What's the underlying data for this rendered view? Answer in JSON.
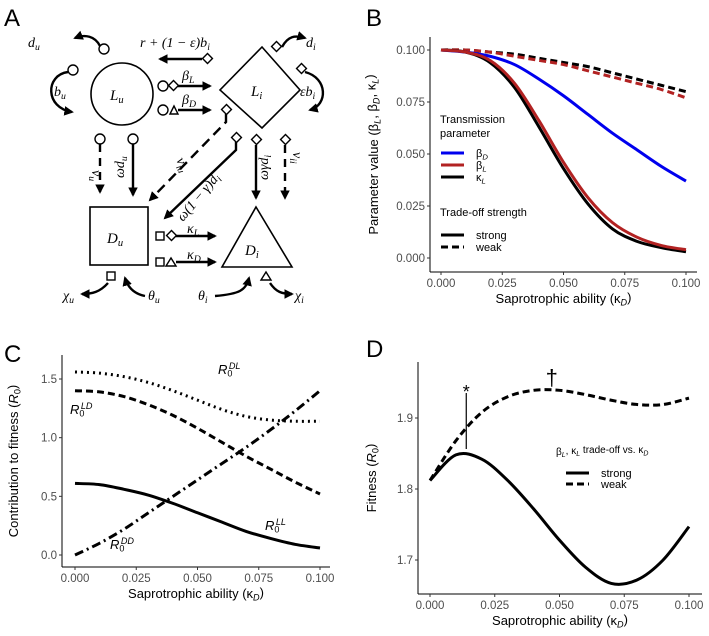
{
  "panel_letters": {
    "a": "A",
    "b": "B",
    "c": "C",
    "d": "D"
  },
  "diagram": {
    "nodes": {
      "Lu": [
        {
          "t": "L"
        },
        {
          "t": "u",
          "sub": true
        }
      ],
      "Li": [
        {
          "t": "L"
        },
        {
          "t": "i",
          "sub": true
        }
      ],
      "Du": [
        {
          "t": "D"
        },
        {
          "t": "u",
          "sub": true
        }
      ],
      "Di": [
        {
          "t": "D"
        },
        {
          "t": "i",
          "sub": true
        }
      ]
    },
    "labels": {
      "du": [
        {
          "t": "d"
        },
        {
          "t": "u",
          "sub": true
        }
      ],
      "recovery": [
        {
          "t": "r + (1 − ε)b"
        },
        {
          "t": "i",
          "sub": true
        }
      ],
      "di": [
        {
          "t": "d"
        },
        {
          "t": "i",
          "sub": true
        }
      ],
      "bu": [
        {
          "t": "b"
        },
        {
          "t": "u",
          "sub": true
        }
      ],
      "ebi": [
        {
          "t": "εb"
        },
        {
          "t": "i",
          "sub": true
        }
      ],
      "betaL": [
        {
          "t": "β"
        },
        {
          "t": "L",
          "sub": true
        }
      ],
      "betaD": [
        {
          "t": "β"
        },
        {
          "t": "D",
          "sub": true
        }
      ],
      "nu_u": [
        {
          "t": "ν"
        },
        {
          "t": "u",
          "sub": true
        }
      ],
      "omega_du": [
        {
          "t": "ωd"
        },
        {
          "t": "u",
          "sub": true
        }
      ],
      "nu_iu": [
        {
          "t": "ν"
        },
        {
          "t": "iu",
          "sub": true
        }
      ],
      "omega_1mg_di": [
        {
          "t": "ω(1 − γ)d"
        },
        {
          "t": "i",
          "sub": true
        }
      ],
      "omega_g_di": [
        {
          "t": "ωγd"
        },
        {
          "t": "i",
          "sub": true
        }
      ],
      "nu_ii": [
        {
          "t": "ν"
        },
        {
          "t": "ii",
          "sub": true
        }
      ],
      "kappaL": [
        {
          "t": "κ"
        },
        {
          "t": "L",
          "sub": true
        }
      ],
      "kappaD": [
        {
          "t": "κ"
        },
        {
          "t": "D",
          "sub": true
        }
      ],
      "chi_u": [
        {
          "t": "χ"
        },
        {
          "t": "u",
          "sub": true
        }
      ],
      "theta_u": [
        {
          "t": "θ"
        },
        {
          "t": "u",
          "sub": true
        }
      ],
      "theta_i": [
        {
          "t": "θ"
        },
        {
          "t": "i",
          "sub": true
        }
      ],
      "chi_i": [
        {
          "t": "χ"
        },
        {
          "t": "i",
          "sub": true
        }
      ]
    }
  },
  "chart_data": [
    {
      "id": "B",
      "type": "line",
      "xlabel": [
        {
          "t": "Saprotrophic ability (κ"
        },
        {
          "t": "D",
          "sub": true,
          "it": true
        },
        {
          "t": ")"
        }
      ],
      "ylabel": [
        {
          "t": "Parameter value (β"
        },
        {
          "t": "L",
          "sub": true,
          "it": true
        },
        {
          "t": ", β"
        },
        {
          "t": "D",
          "sub": true,
          "it": true
        },
        {
          "t": ", κ"
        },
        {
          "t": "L",
          "sub": true,
          "it": true
        },
        {
          "t": ")"
        }
      ],
      "xlim": [
        0,
        0.1
      ],
      "ylim": [
        0,
        0.1
      ],
      "xticks": [
        "0.000",
        "0.025",
        "0.050",
        "0.075",
        "0.100"
      ],
      "yticks": [
        "0.000",
        "0.025",
        "0.050",
        "0.075",
        "0.100"
      ],
      "x": [
        0,
        0.01,
        0.02,
        0.03,
        0.04,
        0.05,
        0.06,
        0.07,
        0.08,
        0.09,
        0.1
      ],
      "series": [
        {
          "name": "κL weak",
          "param": "κL",
          "strength": "weak",
          "color": "#000000",
          "values": [
            0.1,
            0.1,
            0.099,
            0.098,
            0.096,
            0.094,
            0.092,
            0.089,
            0.086,
            0.083,
            0.08
          ]
        },
        {
          "name": "βL weak",
          "param": "βL",
          "strength": "weak",
          "color": "#b22222",
          "values": [
            0.1,
            0.1,
            0.099,
            0.097,
            0.095,
            0.093,
            0.09,
            0.087,
            0.084,
            0.081,
            0.077
          ]
        },
        {
          "name": "βD strong",
          "param": "βD",
          "strength": "strong",
          "color": "#0000ee",
          "values": [
            0.1,
            0.099,
            0.097,
            0.093,
            0.086,
            0.078,
            0.069,
            0.06,
            0.052,
            0.044,
            0.037
          ]
        },
        {
          "name": "κL strong",
          "param": "κL",
          "strength": "strong",
          "color": "#000000",
          "values": [
            0.1,
            0.099,
            0.094,
            0.082,
            0.063,
            0.043,
            0.026,
            0.014,
            0.008,
            0.005,
            0.003
          ]
        },
        {
          "name": "βL strong",
          "param": "βL",
          "strength": "strong",
          "color": "#b22222",
          "values": [
            0.1,
            0.099,
            0.095,
            0.084,
            0.066,
            0.046,
            0.029,
            0.017,
            0.01,
            0.006,
            0.004
          ]
        }
      ],
      "legend": {
        "placement": "left-middle",
        "title1": [
          "Transmission",
          "parameter"
        ],
        "items": [
          {
            "label": [
              {
                "t": "β"
              },
              {
                "t": "D",
                "sub": true,
                "it": true
              }
            ],
            "color": "#0000ee"
          },
          {
            "label": [
              {
                "t": "β"
              },
              {
                "t": "L",
                "sub": true,
                "it": true
              }
            ],
            "color": "#b22222"
          },
          {
            "label": [
              {
                "t": "κ"
              },
              {
                "t": "L",
                "sub": true,
                "it": true
              }
            ],
            "color": "#000000"
          }
        ],
        "title2": "Trade-off strength",
        "styles": [
          {
            "label": "strong",
            "dash": "solid"
          },
          {
            "label": "weak",
            "dash": "dashed"
          }
        ]
      }
    },
    {
      "id": "C",
      "type": "line",
      "xlabel": [
        {
          "t": "Saprotrophic ability (κ"
        },
        {
          "t": "D",
          "sub": true,
          "it": true
        },
        {
          "t": ")"
        }
      ],
      "ylabel": [
        {
          "t": "Contribution to fitness ("
        },
        {
          "t": "R",
          "it": true
        },
        {
          "t": "0",
          "sub": true
        },
        {
          "t": ")"
        }
      ],
      "xlim": [
        0,
        0.1
      ],
      "ylim": [
        0,
        1.5
      ],
      "xticks": [
        "0.000",
        "0.025",
        "0.050",
        "0.075",
        "0.100"
      ],
      "yticks": [
        "0.0",
        "0.5",
        "1.0",
        "1.5"
      ],
      "x": [
        0,
        0.01,
        0.02,
        0.03,
        0.04,
        0.05,
        0.06,
        0.07,
        0.08,
        0.09,
        0.1
      ],
      "series": [
        {
          "name": "R0DL",
          "dash": "dotted",
          "label": [
            {
              "t": "R",
              "it": true
            },
            {
              "t": "0",
              "sub": true
            },
            {
              "t": "DL",
              "sup": true,
              "it": true
            }
          ],
          "values": [
            1.56,
            1.55,
            1.52,
            1.47,
            1.4,
            1.32,
            1.24,
            1.18,
            1.15,
            1.14,
            1.14
          ]
        },
        {
          "name": "R0LD",
          "dash": "dashed",
          "label": [
            {
              "t": "R",
              "it": true
            },
            {
              "t": "0",
              "sub": true
            },
            {
              "t": "LD",
              "sup": true,
              "it": true
            }
          ],
          "values": [
            1.4,
            1.39,
            1.35,
            1.28,
            1.19,
            1.08,
            0.96,
            0.84,
            0.73,
            0.62,
            0.52
          ]
        },
        {
          "name": "R0DD",
          "dash": "dashdot",
          "label": [
            {
              "t": "R",
              "it": true
            },
            {
              "t": "0",
              "sub": true
            },
            {
              "t": "DD",
              "sup": true,
              "it": true
            }
          ],
          "values": [
            0.0,
            0.1,
            0.22,
            0.36,
            0.5,
            0.64,
            0.78,
            0.92,
            1.07,
            1.23,
            1.4
          ]
        },
        {
          "name": "R0LL",
          "dash": "solid",
          "label": [
            {
              "t": "R",
              "it": true
            },
            {
              "t": "0",
              "sub": true
            },
            {
              "t": "LL",
              "sup": true,
              "it": true
            }
          ],
          "values": [
            0.61,
            0.6,
            0.56,
            0.51,
            0.44,
            0.36,
            0.28,
            0.2,
            0.14,
            0.09,
            0.06
          ]
        }
      ]
    },
    {
      "id": "D",
      "type": "line",
      "xlabel": [
        {
          "t": "Saprotrophic ability (κ"
        },
        {
          "t": "D",
          "sub": true,
          "it": true
        },
        {
          "t": ")"
        }
      ],
      "ylabel": [
        {
          "t": "Fitness ("
        },
        {
          "t": "R",
          "it": true
        },
        {
          "t": "0",
          "sub": true
        },
        {
          "t": ")"
        }
      ],
      "xlim": [
        0,
        0.1
      ],
      "ylim": [
        1.66,
        1.97
      ],
      "xticks": [
        "0.000",
        "0.025",
        "0.050",
        "0.075",
        "0.100"
      ],
      "yticks": [
        "1.7",
        "1.8",
        "1.9"
      ],
      "x": [
        0,
        0.01,
        0.02,
        0.03,
        0.04,
        0.05,
        0.06,
        0.07,
        0.08,
        0.09,
        0.1
      ],
      "series": [
        {
          "name": "strong",
          "dash": "solid",
          "values": [
            1.812,
            1.848,
            1.842,
            1.812,
            1.772,
            1.728,
            1.69,
            1.667,
            1.672,
            1.7,
            1.747
          ]
        },
        {
          "name": "weak",
          "dash": "dashed",
          "values": [
            1.812,
            1.868,
            1.908,
            1.93,
            1.939,
            1.939,
            1.933,
            1.925,
            1.919,
            1.919,
            1.928
          ]
        }
      ],
      "annotations": [
        {
          "symbol": "*",
          "x": 0.014,
          "note": "strong optimum"
        },
        {
          "symbol": "†",
          "x": 0.047,
          "note": "weak optimum"
        }
      ],
      "legend": {
        "placement": "right-middle",
        "title": [
          {
            "t": "β"
          },
          {
            "t": "L",
            "sub": true,
            "it": true
          },
          {
            "t": ", κ"
          },
          {
            "t": "L",
            "sub": true,
            "it": true
          },
          {
            "t": " trade-off vs. κ"
          },
          {
            "t": "D",
            "sub": true,
            "it": true
          }
        ],
        "styles": [
          {
            "label": "strong",
            "dash": "solid"
          },
          {
            "label": "weak",
            "dash": "dashed"
          }
        ]
      }
    }
  ]
}
